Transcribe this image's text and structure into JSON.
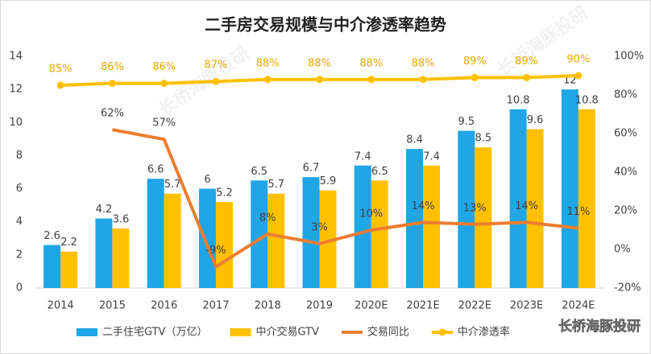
{
  "chart_data": {
    "type": "combo",
    "title": "二手房交易规模与中介渗透率趋势",
    "watermark": "长桥海豚投研",
    "categories": [
      "2014",
      "2015",
      "2016",
      "2017",
      "2018",
      "2019",
      "2020E",
      "2021E",
      "2022E",
      "2023E",
      "2024E"
    ],
    "series": [
      {
        "name": "二手住宅GTV（万亿）",
        "type": "bar",
        "color": "#1ea6e6",
        "values": [
          2.6,
          4.2,
          6.6,
          6,
          6.5,
          6.7,
          7.4,
          8.4,
          9.5,
          10.8,
          12
        ]
      },
      {
        "name": "中介交易GTV",
        "type": "bar",
        "color": "#ffc000",
        "values": [
          2.2,
          3.6,
          5.7,
          5.2,
          5.7,
          5.9,
          6.5,
          7.4,
          8.5,
          9.6,
          10.8
        ]
      },
      {
        "name": "交易同比",
        "type": "line",
        "axis": "y2",
        "color": "#ed7d31",
        "values": [
          null,
          62,
          57,
          -9,
          8,
          3,
          10,
          14,
          13,
          14,
          11
        ],
        "value_labels": [
          null,
          "62%",
          "57%",
          "-9%",
          "8%",
          "3%",
          "10%",
          "14%",
          "13%",
          "14%",
          "11%"
        ]
      },
      {
        "name": "中介渗透率",
        "type": "line",
        "axis": "y2",
        "color": "#ffc000",
        "markers": true,
        "values": [
          85,
          86,
          86,
          87,
          88,
          88,
          88,
          88,
          89,
          89,
          90
        ],
        "value_labels": [
          "85%",
          "86%",
          "86%",
          "87%",
          "88%",
          "88%",
          "88%",
          "88%",
          "89%",
          "89%",
          "90%"
        ]
      }
    ],
    "ylim": [
      0,
      14
    ],
    "yticks": [
      0,
      2,
      4,
      6,
      8,
      10,
      12,
      14
    ],
    "y2lim": [
      -20,
      100
    ],
    "y2ticks": [
      {
        "value": -20,
        "label": "-20%"
      },
      {
        "value": 0,
        "label": "0%"
      },
      {
        "value": 20,
        "label": "20%"
      },
      {
        "value": 40,
        "label": "40%"
      },
      {
        "value": 60,
        "label": "60%"
      },
      {
        "value": 80,
        "label": "80%"
      },
      {
        "value": 100,
        "label": "100%"
      }
    ],
    "legend": "bottom"
  }
}
